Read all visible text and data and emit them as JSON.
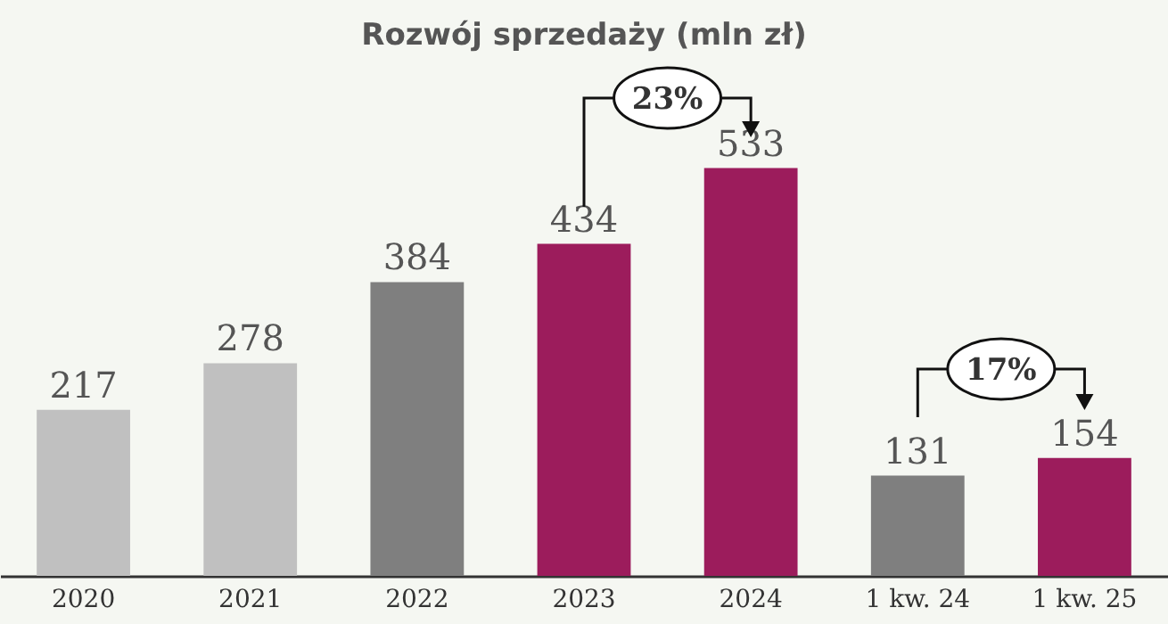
{
  "chart_data": {
    "type": "bar",
    "title": "Rozwój sprzedaży (mln zł)",
    "categories": [
      "2020",
      "2021",
      "2022",
      "2023",
      "2024",
      "1 kw. 24",
      "1 kw. 25"
    ],
    "values": [
      217,
      278,
      384,
      434,
      533,
      131,
      154
    ],
    "colors": [
      "#c0c0c0",
      "#c0c0c0",
      "#7f7f7f",
      "#9c1c5c",
      "#9c1c5c",
      "#7f7f7f",
      "#9c1c5c"
    ],
    "data_labels": true,
    "annotations": [
      "23%",
      "17%"
    ]
  }
}
